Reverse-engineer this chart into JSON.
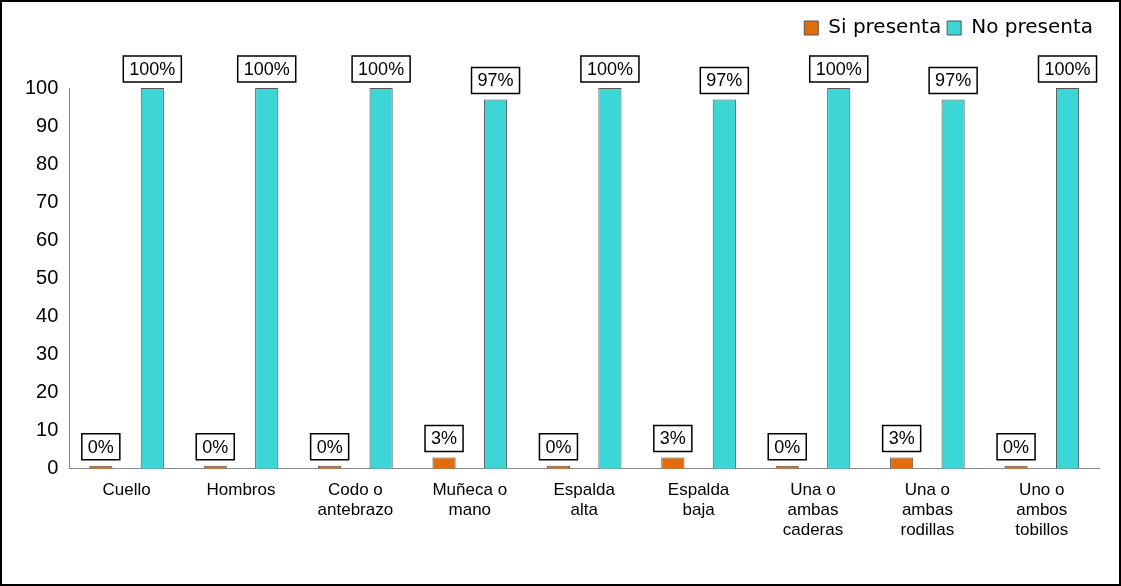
{
  "chart_data": {
    "type": "bar",
    "categories": [
      "Cuello",
      "Hombros",
      "Codo o antebrazo",
      "Muñeca o mano",
      "Espalda alta",
      "Espalda baja",
      "Una o ambas caderas",
      "Una o ambas rodillas",
      "Uno o ambos tobillos"
    ],
    "series": [
      {
        "name": "Si presenta",
        "color": "#e46c0a",
        "values": [
          0,
          0,
          0,
          3,
          0,
          3,
          0,
          3,
          0
        ],
        "value_labels": [
          "0%",
          "0%",
          "0%",
          "3%",
          "0%",
          "3%",
          "0%",
          "3%",
          "0%"
        ]
      },
      {
        "name": "No presenta",
        "color": "#3dd6d6",
        "values": [
          100,
          100,
          100,
          97,
          100,
          97,
          100,
          97,
          100
        ],
        "value_labels": [
          "100%",
          "100%",
          "100%",
          "97%",
          "100%",
          "97%",
          "100%",
          "97%",
          "100%"
        ]
      }
    ],
    "ylim": [
      0,
      100
    ],
    "yticks": [
      0,
      10,
      20,
      30,
      40,
      50,
      60,
      70,
      80,
      90,
      100
    ],
    "grid": false,
    "legend": "top right"
  }
}
